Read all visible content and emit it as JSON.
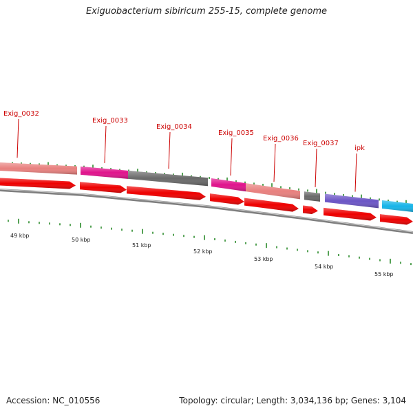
{
  "title": "Exiguobacterium sibiricum 255-15, complete genome",
  "accession": "Accession: NC_010556",
  "topology": "Topology: circular; Length: 3,034,136 bp; Genes: 3,104",
  "genes": [
    {
      "label": "Exig_0032",
      "color": "#e8807e"
    },
    {
      "label": "Exig_0033",
      "color": "#e0138c"
    },
    {
      "label": "Exig_0034",
      "color": "#6a6a6a"
    },
    {
      "label": "Exig_0035",
      "color": "#e0138c"
    },
    {
      "label": "Exig_0036",
      "color": "#e8807e"
    },
    {
      "label": "Exig_0037",
      "color": "#6a6a6a"
    },
    {
      "label": "ipk",
      "color": "#6b55c6"
    }
  ],
  "cyan_segment_color": "#16b4e8",
  "cds_color": "#ee0000",
  "backbone_color": "#7f7f7f",
  "tick_color": "#2a8a2a",
  "kbp_labels": [
    "49 kbp",
    "50 kbp",
    "51 kbp",
    "52 kbp",
    "53 kbp",
    "54 kbp",
    "55 kbp"
  ]
}
